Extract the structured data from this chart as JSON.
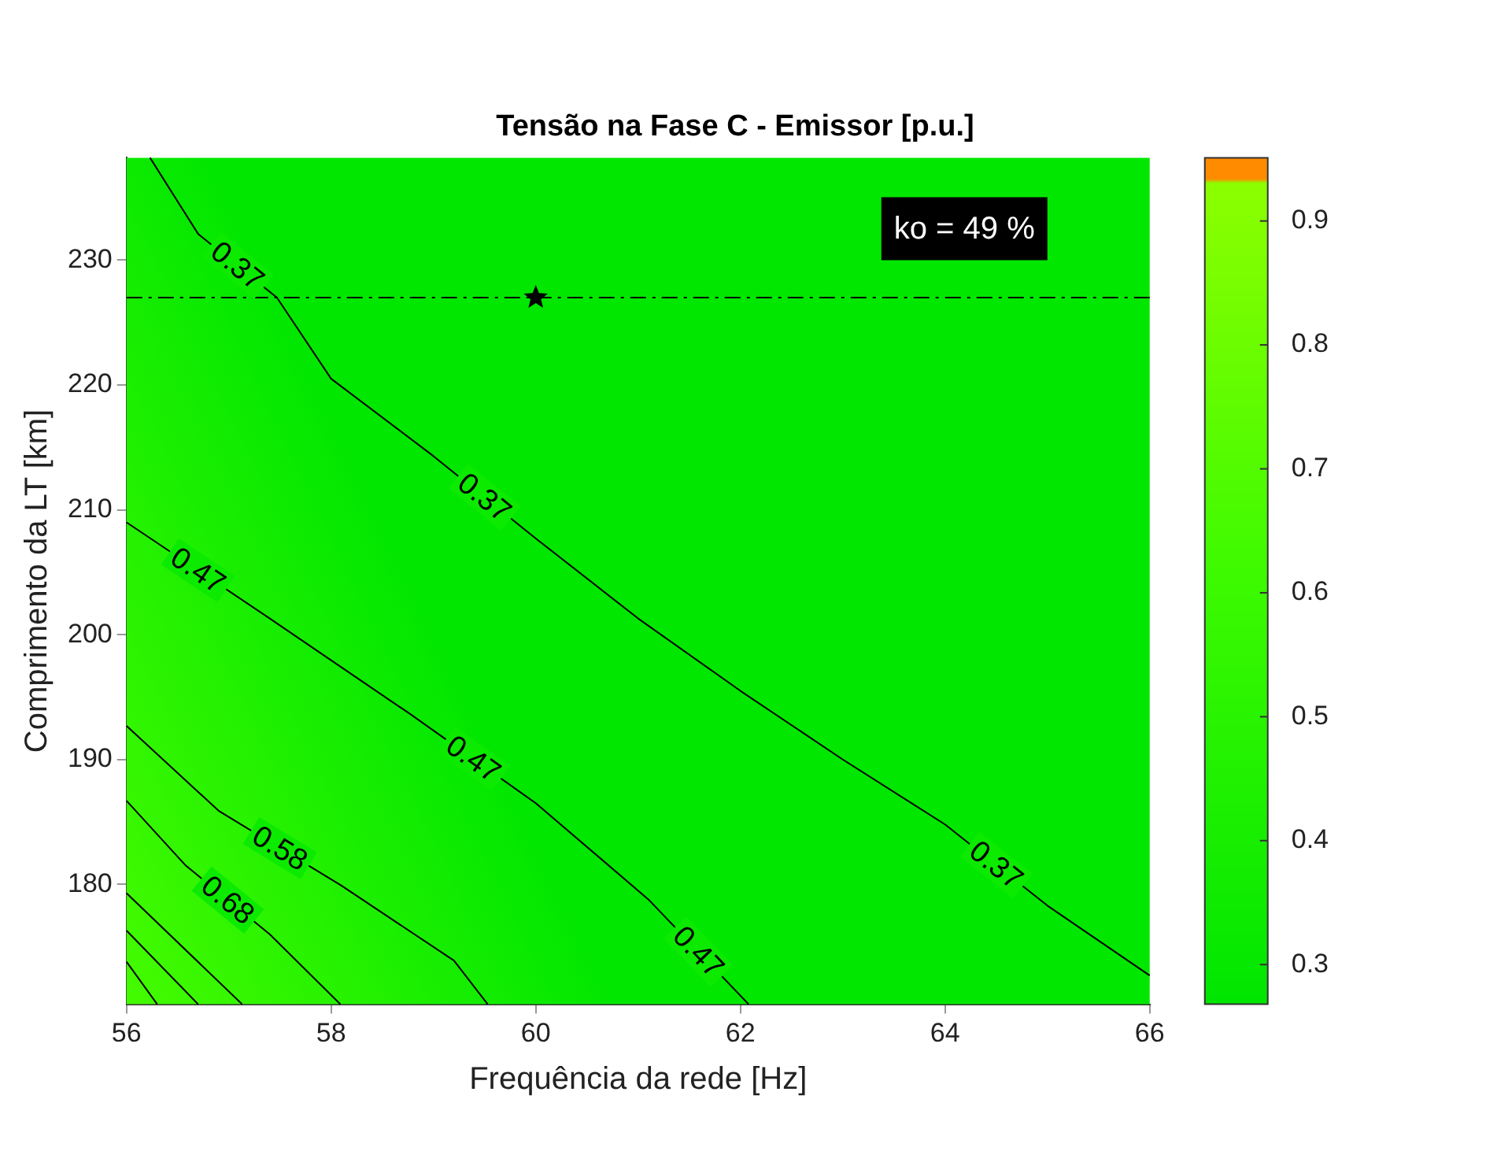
{
  "chart_data": {
    "type": "line",
    "title": "Tensão na Fase C - Emissor [p.u.]",
    "xlabel": "Frequência da rede [Hz]",
    "ylabel": "Comprimento da LT [km]",
    "series": [
      {
        "name": "0.37",
        "color": "#000000",
        "x": [
          56.23,
          56.7,
          57.47,
          58,
          59,
          60,
          61,
          62,
          63,
          64,
          65,
          66
        ],
        "values": [
          238.2,
          232.1,
          227,
          220.5,
          214.3,
          207.7,
          201.3,
          195.5,
          190,
          184.8,
          178.3,
          172.7
        ]
      },
      {
        "name": "0.47",
        "color": "#000000",
        "x": [
          56,
          57.4,
          58.78,
          60,
          61.1,
          62.08
        ],
        "values": [
          209,
          201.3,
          193.6,
          186.5,
          178.8,
          170.4
        ]
      },
      {
        "name": "0.58",
        "color": "#000000",
        "x": [
          56,
          56.9,
          58.1,
          59.2,
          59.53
        ],
        "values": [
          192.7,
          185.9,
          179.9,
          173.9,
          170.4
        ]
      },
      {
        "name": "0.68",
        "color": "#000000",
        "x": [
          56,
          56.58,
          57.4,
          58.09
        ],
        "values": [
          186.7,
          181.5,
          176,
          170.4
        ]
      },
      {
        "color": "#000000",
        "x": [
          56,
          57.13
        ],
        "values": [
          179.3,
          170.4
        ]
      },
      {
        "color": "#000000",
        "x": [
          56,
          56.7
        ],
        "values": [
          176.3,
          170.4
        ]
      },
      {
        "color": "#000000",
        "x": [
          56,
          56.3
        ],
        "values": [
          173.8,
          170.4
        ]
      },
      {
        "type": "scatter",
        "marker": "star",
        "color": "#000000",
        "x": [
          60
        ],
        "values": [
          227
        ]
      }
    ],
    "xlim": [
      56,
      66
    ],
    "xticks": [
      56,
      58,
      60,
      62,
      64,
      66
    ],
    "ylim": [
      170.4,
      238.2
    ],
    "yticks": [
      180,
      190,
      200,
      210,
      220,
      230
    ],
    "clim": [
      0.268,
      0.951
    ],
    "cticks": [
      0.3,
      0.4,
      0.5,
      0.6,
      0.7,
      0.8,
      0.9
    ],
    "ref_lines": [
      {
        "axis": "y",
        "value": 227,
        "color": "#000000",
        "line_style": "dashdot"
      }
    ],
    "annotations": [
      "ko = 49 %"
    ],
    "grid": false,
    "legend": false,
    "marker": "none",
    "line_style": "solid"
  }
}
